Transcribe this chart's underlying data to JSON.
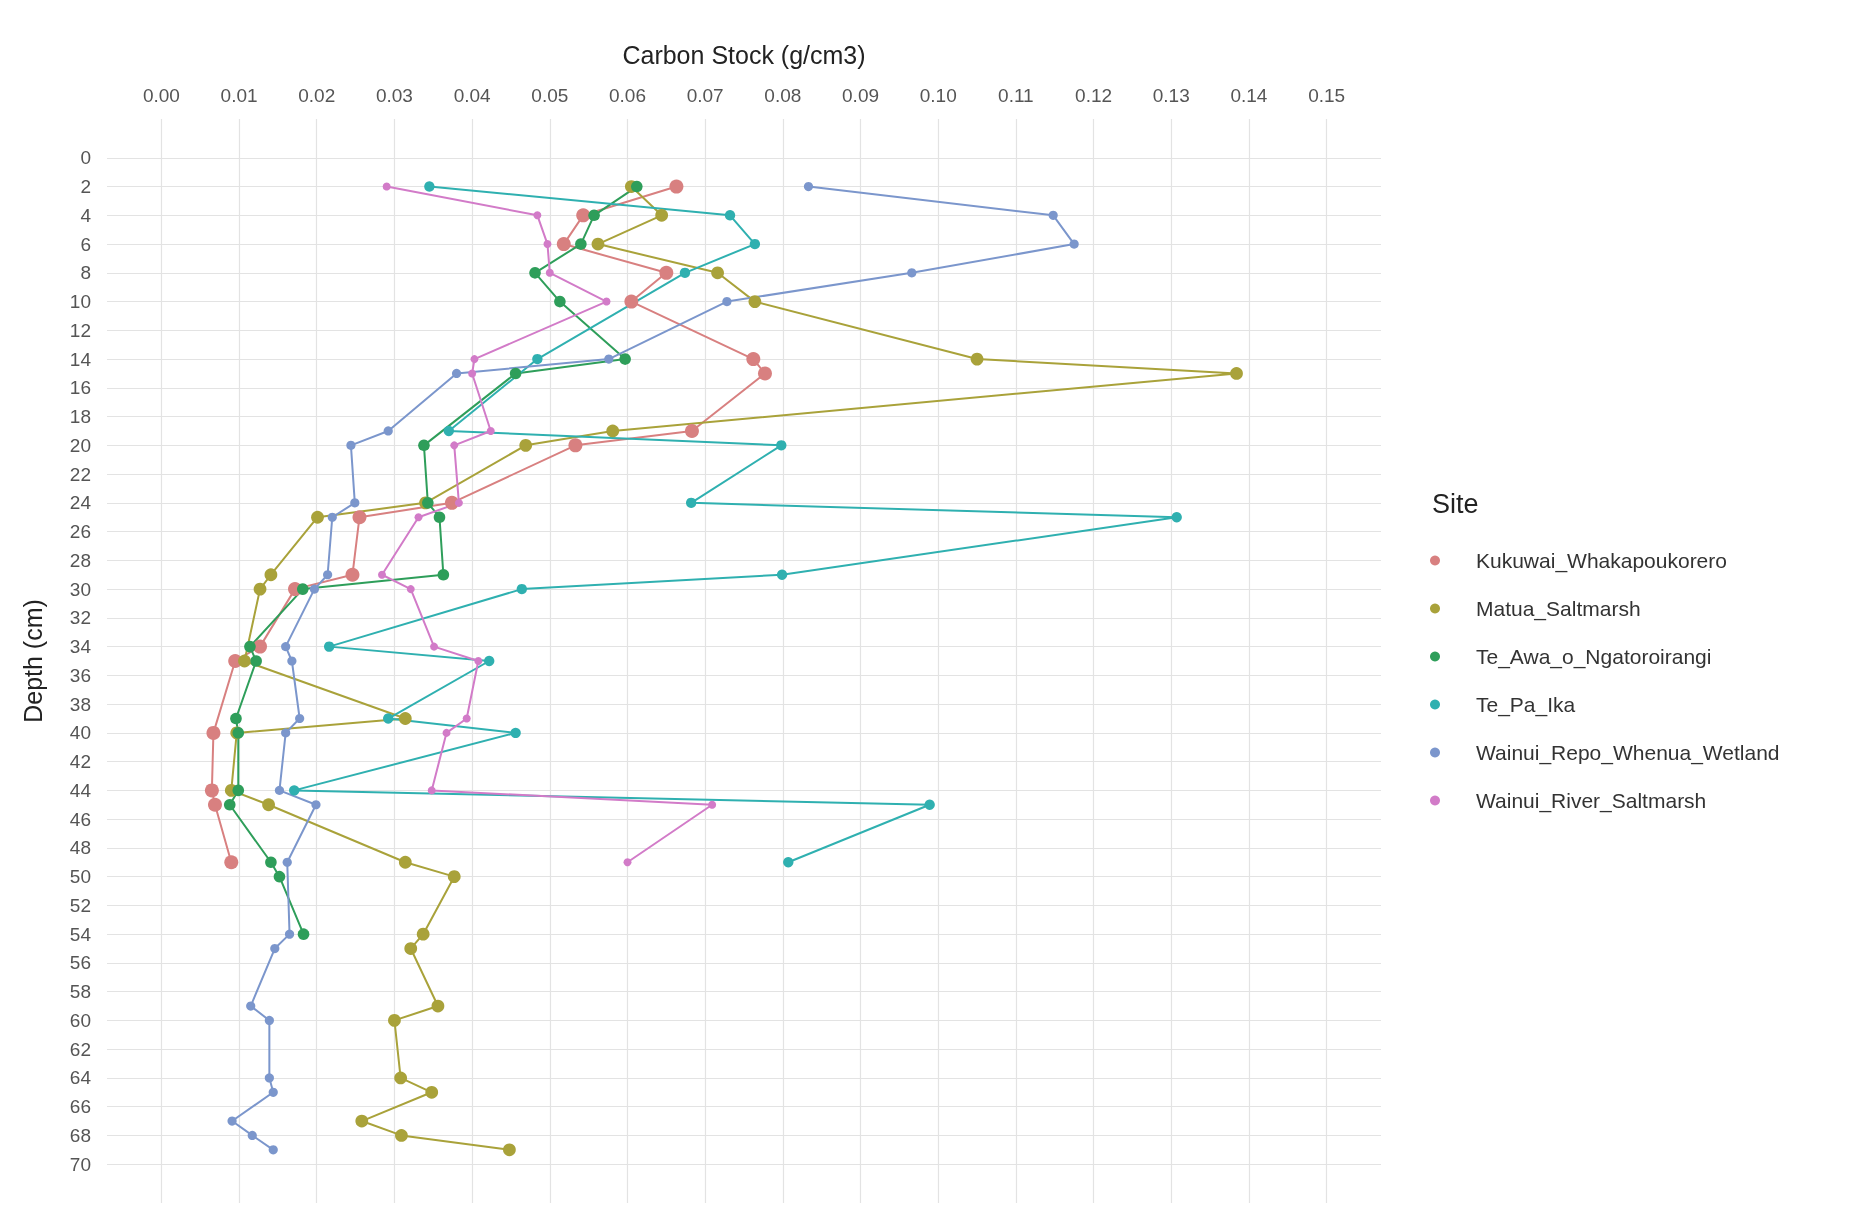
{
  "chart_data": {
    "type": "line",
    "xlabel": "Carbon Stock (g/cm3)",
    "ylabel": "Depth (cm)",
    "legend_title": "Site",
    "legend": "right",
    "grid": true,
    "marker": "circle",
    "line_style": "solid",
    "xlim": [
      -0.007,
      0.157
    ],
    "xticks": [
      {
        "value": 0,
        "label": "0.00"
      },
      {
        "value": 0.01,
        "label": "0.01"
      },
      {
        "value": 0.02,
        "label": "0.02"
      },
      {
        "value": 0.03,
        "label": "0.03"
      },
      {
        "value": 0.04,
        "label": "0.04"
      },
      {
        "value": 0.05,
        "label": "0.05"
      },
      {
        "value": 0.06,
        "label": "0.06"
      },
      {
        "value": 0.07,
        "label": "0.07"
      },
      {
        "value": 0.08,
        "label": "0.08"
      },
      {
        "value": 0.09,
        "label": "0.09"
      },
      {
        "value": 0.1,
        "label": "0.10"
      },
      {
        "value": 0.11,
        "label": "0.11"
      },
      {
        "value": 0.12,
        "label": "0.12"
      },
      {
        "value": 0.13,
        "label": "0.13"
      },
      {
        "value": 0.14,
        "label": "0.14"
      },
      {
        "value": 0.15,
        "label": "0.15"
      }
    ],
    "ylim": [
      72.7,
      -2.7
    ],
    "yticks": [
      0,
      2,
      4,
      6,
      8,
      10,
      12,
      14,
      16,
      18,
      20,
      22,
      24,
      26,
      28,
      30,
      32,
      34,
      36,
      38,
      40,
      42,
      44,
      46,
      48,
      50,
      52,
      54,
      56,
      58,
      60,
      62,
      64,
      66,
      68,
      70
    ],
    "series": [
      {
        "name": "Kukuwai_Whakapoukorero",
        "color": "#d88080",
        "x": [
          0.0663,
          0.0543,
          0.0518,
          0.065,
          0.0605,
          0.0762,
          0.0777,
          0.0683,
          0.0533,
          0.0374,
          0.0255,
          0.0246,
          0.0172,
          0.0127,
          0.0095,
          0.0067,
          0.0065,
          0.0069,
          0.009
        ],
        "values": [
          2,
          4,
          6,
          8,
          10,
          14,
          15,
          19,
          20,
          24,
          25,
          29,
          30,
          34,
          35,
          40,
          44,
          45,
          49
        ]
      },
      {
        "name": "Matua_Saltmarsh",
        "color": "#a9a23a",
        "x": [
          0.0605,
          0.0644,
          0.0562,
          0.0716,
          0.0764,
          0.105,
          0.1384,
          0.0581,
          0.0469,
          0.034,
          0.0201,
          0.0141,
          0.0127,
          0.0107,
          0.0314,
          0.0097,
          0.009,
          0.0138,
          0.0314,
          0.0377,
          0.0337,
          0.0321,
          0.0356,
          0.03,
          0.0308,
          0.0348,
          0.0258,
          0.0309,
          0.0448
        ],
        "values": [
          2,
          4,
          6,
          8,
          10,
          14,
          15,
          19,
          20,
          24,
          25,
          29,
          30,
          35,
          39,
          40,
          44,
          45,
          49,
          50,
          54,
          55,
          59,
          60,
          64,
          65,
          67,
          68,
          69
        ]
      },
      {
        "name": "Te_Awa_o_Ngatoroirangi",
        "color": "#2e9e5a",
        "x": [
          0.0612,
          0.0557,
          0.054,
          0.0481,
          0.0513,
          0.0597,
          0.0456,
          0.0338,
          0.0343,
          0.0358,
          0.0363,
          0.0182,
          0.0114,
          0.0122,
          0.0096,
          0.0099,
          0.0099,
          0.0088,
          0.0141,
          0.0152,
          0.0183
        ],
        "values": [
          2,
          4,
          6,
          8,
          10,
          14,
          15,
          20,
          24,
          25,
          29,
          30,
          34,
          35,
          39,
          40,
          44,
          45,
          49,
          50,
          54
        ]
      },
      {
        "name": "Te_Pa_Ika",
        "color": "#2fb0b0",
        "x": [
          0.0345,
          0.0732,
          0.0764,
          0.0674,
          0.0484,
          0.037,
          0.0798,
          0.0682,
          0.1307,
          0.0799,
          0.0464,
          0.0216,
          0.0422,
          0.0292,
          0.0456,
          0.0171,
          0.0989,
          0.0807
        ],
        "values": [
          2,
          4,
          6,
          8,
          14,
          19,
          20,
          24,
          25,
          29,
          30,
          34,
          35,
          39,
          40,
          44,
          45,
          49
        ]
      },
      {
        "name": "Wainui_Repo_Whenua_Wetland",
        "color": "#7b96cc",
        "x": [
          0.0833,
          0.1148,
          0.1175,
          0.0966,
          0.0728,
          0.0576,
          0.038,
          0.0292,
          0.0244,
          0.0249,
          0.022,
          0.0214,
          0.0197,
          0.016,
          0.0168,
          0.0178,
          0.016,
          0.0152,
          0.0199,
          0.0162,
          0.0165,
          0.0146,
          0.0115,
          0.0139,
          0.0139,
          0.0144,
          0.0091,
          0.0117,
          0.0144
        ],
        "values": [
          2,
          4,
          6,
          8,
          10,
          14,
          15,
          19,
          20,
          24,
          25,
          29,
          30,
          34,
          35,
          39,
          40,
          44,
          45,
          49,
          54,
          55,
          59,
          60,
          64,
          65,
          67,
          68,
          69
        ]
      },
      {
        "name": "Wainui_River_Saltmarsh",
        "color": "#d27bc8",
        "x": [
          0.029,
          0.0484,
          0.0497,
          0.05,
          0.0573,
          0.0403,
          0.04,
          0.0424,
          0.0377,
          0.0383,
          0.0331,
          0.0284,
          0.0321,
          0.0351,
          0.0408,
          0.0393,
          0.0367,
          0.0348,
          0.0709,
          0.06
        ],
        "values": [
          2,
          4,
          6,
          8,
          10,
          14,
          15,
          19,
          20,
          24,
          25,
          29,
          30,
          34,
          35,
          39,
          40,
          44,
          45,
          49
        ]
      }
    ]
  }
}
